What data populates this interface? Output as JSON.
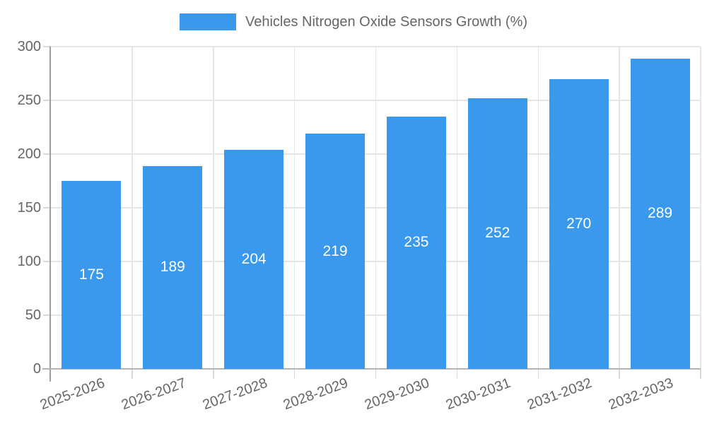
{
  "chart_data": {
    "type": "bar",
    "title": "Vehicles Nitrogen Oxide Sensors Growth (%)",
    "legend_position": "top",
    "categories": [
      "2025-2026",
      "2026-2027",
      "2027-2028",
      "2028-2029",
      "2029-2030",
      "2030-2031",
      "2031-2032",
      "2032-2033"
    ],
    "values": [
      175,
      189,
      204,
      219,
      235,
      252,
      270,
      289
    ],
    "series": [
      {
        "name": "Vehicles Nitrogen Oxide Sensors Growth (%)",
        "values": [
          175,
          189,
          204,
          219,
          235,
          252,
          270,
          289
        ]
      }
    ],
    "xlabel": "",
    "ylabel": "",
    "ylim": [
      0,
      300
    ],
    "y_ticks": [
      0,
      50,
      100,
      150,
      200,
      250,
      300
    ],
    "grid": true,
    "value_labels_inside_bars": true,
    "x_label_rotation_deg": -20,
    "bar_color": "#3a99ed",
    "value_label_color": "#ffffff",
    "axis_text_color": "#666666",
    "gridline_color": "#e6e6e6",
    "y_axis_line_color": "#9e9e9e",
    "x_axis_line_color": "#b3b3b3"
  }
}
